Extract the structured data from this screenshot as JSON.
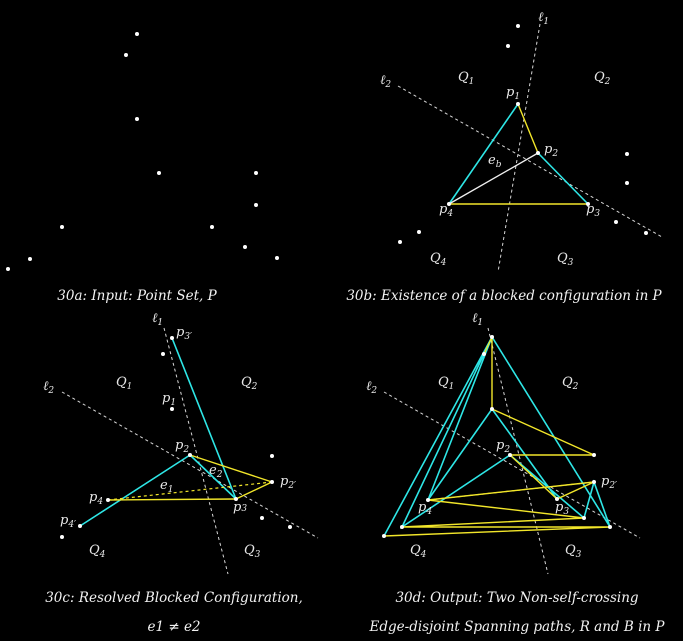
{
  "panels": {
    "a": {
      "caption": "30a: Input: Point Set, P"
    },
    "b": {
      "caption": "30b: Existence of a blocked configuration in P",
      "labels": {
        "l1": "ℓ",
        "l1s": "1",
        "l2": "ℓ",
        "l2s": "2",
        "q1": "Q",
        "q1s": "1",
        "q2": "Q",
        "q2s": "2",
        "q3": "Q",
        "q3s": "3",
        "q4": "Q",
        "q4s": "4",
        "p1": "p",
        "p1s": "1",
        "p2": "p",
        "p2s": "2",
        "p3": "p",
        "p3s": "3",
        "p4": "p",
        "p4s": "4",
        "eb": "e",
        "ebs": "b"
      }
    },
    "c": {
      "caption_line1": "30c: Resolved Blocked Configuration,",
      "caption_line2": "e1 ≠ e2",
      "labels": {
        "l1": "ℓ",
        "l1s": "1",
        "l2": "ℓ",
        "l2s": "2",
        "q1": "Q",
        "q1s": "1",
        "q2": "Q",
        "q2s": "2",
        "q3": "Q",
        "q3s": "3",
        "q4": "Q",
        "q4s": "4",
        "p1": "p",
        "p1s": "1",
        "p2": "p",
        "p2s": "2",
        "p3": "p",
        "p3s": "3",
        "p4": "p",
        "p4s": "4",
        "p3p": "p",
        "p3ps": "3′",
        "p2p": "p",
        "p2ps": "2′",
        "p4p": "p",
        "p4ps": "4′",
        "e1": "e",
        "e1s": "1",
        "e2": "e",
        "e2s": "2"
      }
    },
    "d": {
      "caption_line1": "30d: Output: Two Non-self-crossing",
      "caption_line2": "Edge-disjoint Spanning paths, R and B in P",
      "labels": {
        "l1": "ℓ",
        "l1s": "1",
        "l2": "ℓ",
        "l2s": "2",
        "q1": "Q",
        "q1s": "1",
        "q2": "Q",
        "q2s": "2",
        "q3": "Q",
        "q3s": "3",
        "q4": "Q",
        "q4s": "4",
        "p2": "p",
        "p2s": "2",
        "p3": "p",
        "p3s": "3",
        "p4": "p",
        "p4s": "4",
        "p2p": "p",
        "p2ps": "2′"
      }
    }
  },
  "colors": {
    "background": "#000000",
    "cyan": "#2ee6e6",
    "yellow": "#f2e62a",
    "point": "#ffffff"
  }
}
